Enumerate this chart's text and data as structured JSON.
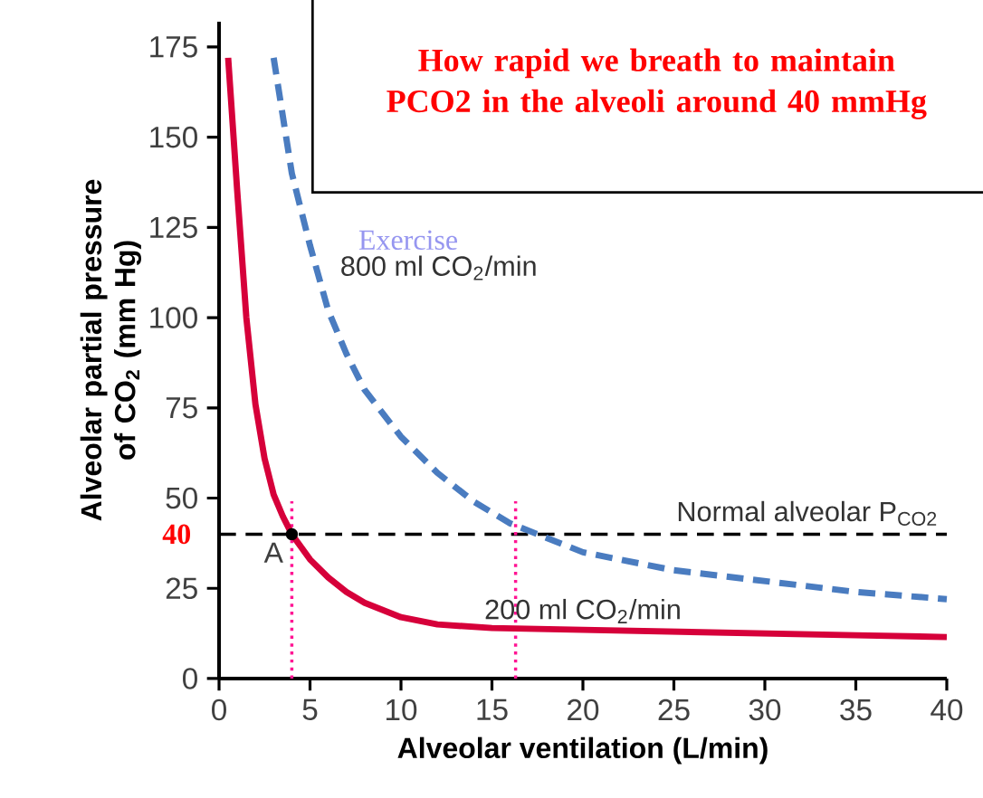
{
  "chart_data": {
    "type": "line",
    "title": "How rapid we breath to maintain PCO2 in the alveoli around 40 mmHg",
    "xlabel": "Alveolar ventilation (L/min)",
    "ylabel": "Alveolar partial pressure of CO$_{2}$ (mm Hg)",
    "xlim": [
      0,
      40
    ],
    "ylim": [
      0,
      182
    ],
    "xticks": [
      0,
      5,
      10,
      15,
      20,
      25,
      30,
      35,
      40
    ],
    "yticks": [
      0,
      25,
      50,
      75,
      100,
      125,
      150,
      175
    ],
    "series": [
      {
        "name": "200 ml CO$_{2}$/min",
        "color": "#d6003a",
        "line_style": "solid",
        "x": [
          0.5,
          1,
          1.5,
          2,
          2.5,
          3,
          3.5,
          4,
          5,
          6,
          7,
          8,
          10,
          12,
          15,
          20,
          25,
          30,
          35,
          40
        ],
        "values": [
          172,
          135,
          100,
          76,
          61,
          51,
          45,
          40,
          33,
          28,
          24,
          21,
          17,
          15,
          14,
          13.5,
          13,
          12.5,
          12,
          11.5
        ]
      },
      {
        "name": "800 ml CO$_{2}$/min",
        "color": "#4a7cc0",
        "line_style": "dashed",
        "x": [
          3,
          4,
          5,
          6,
          7,
          8,
          10,
          12,
          14,
          16,
          18,
          20,
          25,
          30,
          35,
          40
        ],
        "values": [
          172,
          140,
          120,
          102,
          90,
          80,
          67,
          57,
          49,
          43,
          39,
          35,
          30,
          27,
          24,
          22
        ]
      }
    ],
    "ref_lines": [
      {
        "axis": "y",
        "value": 40,
        "label": "Normal alveolar P$_{CO2}$",
        "color": "#000000",
        "line_style": "dashed"
      },
      {
        "axis": "x",
        "value": 4,
        "color": "#ff1493",
        "line_style": "dotted"
      },
      {
        "axis": "x",
        "value": 16.3,
        "color": "#ff1493",
        "line_style": "dotted"
      }
    ],
    "annotations": [
      {
        "text": "A",
        "x": 4,
        "y": 40
      },
      "40",
      "Exercise"
    ]
  }
}
